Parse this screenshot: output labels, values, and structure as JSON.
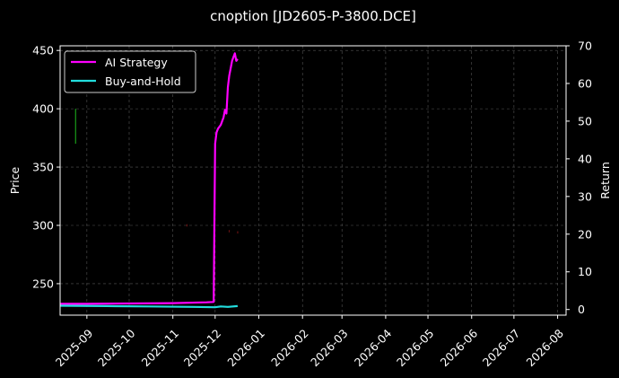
{
  "chart_data": {
    "type": "line",
    "title": "cnoption [JD2605-P-3800.DCE]",
    "ylabel": "Price",
    "y2label": "Return",
    "x_type": "date",
    "xlim": [
      "2025-08-13",
      "2026-08-07"
    ],
    "ylim": [
      223,
      454
    ],
    "y2lim": [
      -1.5,
      70
    ],
    "x_ticks": [
      "2025-09",
      "2025-10",
      "2025-11",
      "2025-12",
      "2026-01",
      "2026-02",
      "2026-03",
      "2026-04",
      "2026-05",
      "2026-06",
      "2026-07",
      "2026-08"
    ],
    "x_tick_dates": [
      "2025-09-01",
      "2025-10-01",
      "2025-11-01",
      "2025-12-01",
      "2026-01-01",
      "2026-02-01",
      "2026-03-01",
      "2026-04-01",
      "2026-05-01",
      "2026-06-01",
      "2026-07-01",
      "2026-08-01"
    ],
    "y_ticks": [
      250,
      300,
      350,
      400,
      450
    ],
    "y2_ticks": [
      0,
      10,
      20,
      30,
      40,
      50,
      60,
      70
    ],
    "grid": true,
    "legend_position": "top-left",
    "background": "#000000",
    "series": [
      {
        "name": "AI Strategy",
        "axis": "right",
        "color": "#ff00ff",
        "points": [
          [
            "2025-08-13",
            1.5
          ],
          [
            "2025-09-01",
            1.5
          ],
          [
            "2025-10-01",
            1.6
          ],
          [
            "2025-11-01",
            1.7
          ],
          [
            "2025-11-25",
            1.9
          ],
          [
            "2025-11-30",
            2.0
          ],
          [
            "2025-12-01",
            44
          ],
          [
            "2025-12-02",
            47
          ],
          [
            "2025-12-03",
            48
          ],
          [
            "2025-12-05",
            49
          ],
          [
            "2025-12-07",
            51
          ],
          [
            "2025-12-08",
            53
          ],
          [
            "2025-12-09",
            52
          ],
          [
            "2025-12-10",
            59
          ],
          [
            "2025-12-11",
            62
          ],
          [
            "2025-12-12",
            64
          ],
          [
            "2025-12-13",
            66
          ],
          [
            "2025-12-14",
            67
          ],
          [
            "2025-12-15",
            68
          ],
          [
            "2025-12-16",
            66
          ],
          [
            "2025-12-17",
            66.5
          ]
        ]
      },
      {
        "name": "Buy-and-Hold",
        "axis": "right",
        "color": "#22dddd",
        "points": [
          [
            "2025-08-13",
            1.0
          ],
          [
            "2025-09-15",
            0.9
          ],
          [
            "2025-10-15",
            0.8
          ],
          [
            "2025-11-15",
            0.7
          ],
          [
            "2025-12-01",
            0.6
          ],
          [
            "2025-12-05",
            0.8
          ],
          [
            "2025-12-10",
            0.7
          ],
          [
            "2025-12-17",
            0.9
          ]
        ]
      }
    ],
    "price_marks": [
      {
        "date": "2025-08-24",
        "high": 400,
        "low": 370,
        "color": "#1a9c1a"
      },
      {
        "date": "2025-11-11",
        "high": 301,
        "low": 299,
        "color": "#661111"
      },
      {
        "date": "2025-12-11",
        "high": 296,
        "low": 294,
        "color": "#661111"
      },
      {
        "date": "2025-12-17",
        "high": 295,
        "low": 293,
        "color": "#661111"
      }
    ]
  }
}
